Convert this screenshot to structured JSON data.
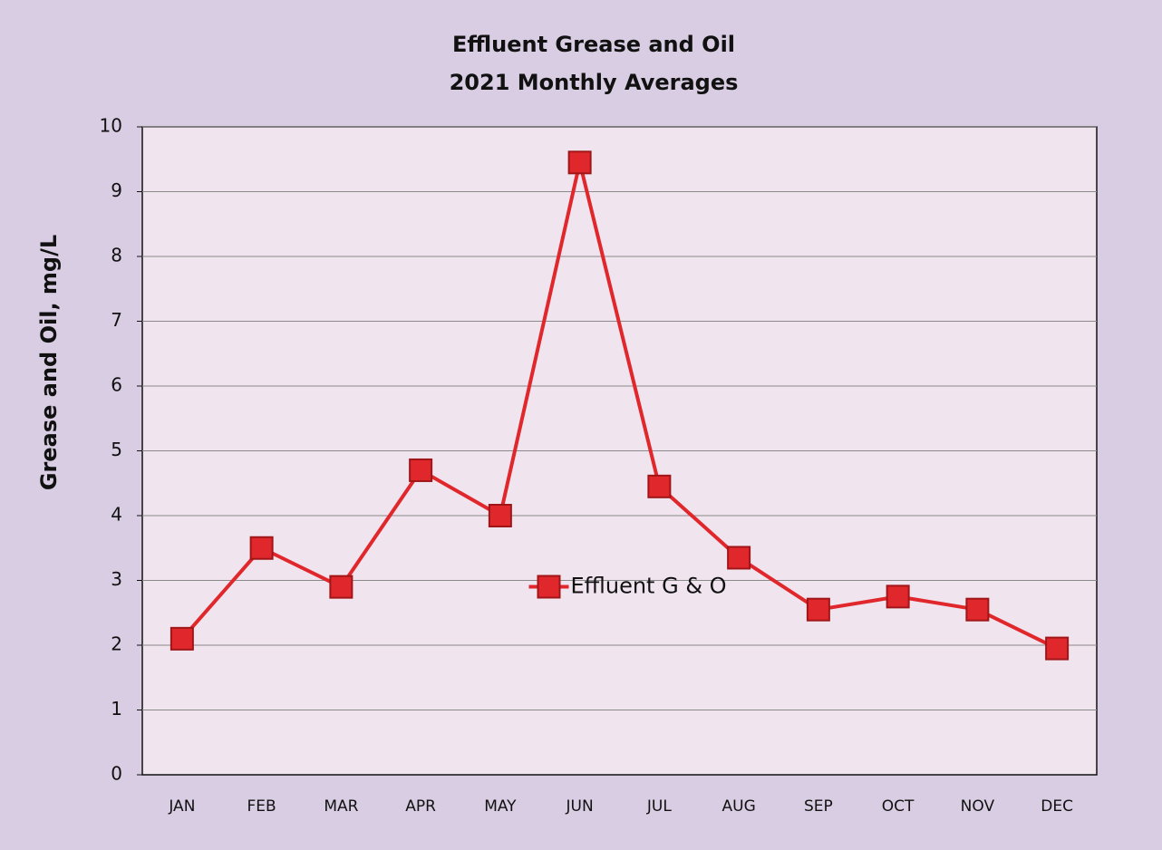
{
  "chart_data": {
    "type": "line",
    "title": "Effluent Grease and Oil",
    "subtitle": "2021 Monthly Averages",
    "y_label": "Grease and Oil, mg/L",
    "categories": [
      "JAN",
      "FEB",
      "MAR",
      "APR",
      "MAY",
      "JUN",
      "JUL",
      "AUG",
      "SEP",
      "OCT",
      "NOV",
      "DEC"
    ],
    "series": [
      {
        "name": "Effluent G & O",
        "color": "#e0282c",
        "values": [
          2.1,
          3.5,
          2.9,
          4.7,
          4.0,
          9.45,
          4.45,
          3.35,
          2.55,
          2.75,
          2.55,
          1.95
        ]
      }
    ],
    "ylim": [
      0,
      10
    ],
    "yticks": [
      0,
      1,
      2,
      3,
      4,
      5,
      6,
      7,
      8,
      9,
      10
    ],
    "grid": true,
    "legend": "center"
  }
}
